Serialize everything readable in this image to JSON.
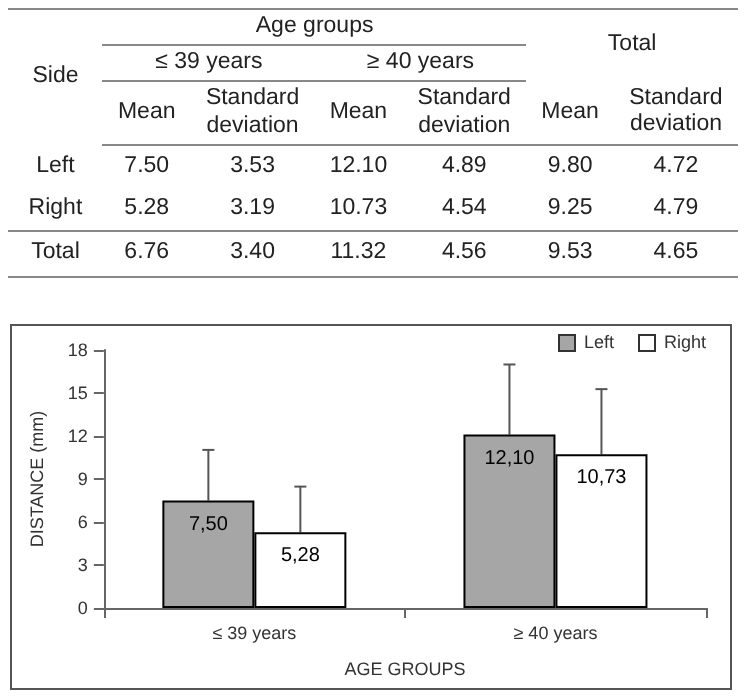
{
  "chart_data": [
    {
      "type": "other",
      "annotations": [
        "Side",
        "Age groups",
        "Total",
        "≤ 39 years",
        "≥ 40 years",
        "Mean",
        "Standard deviation",
        "Mean",
        "Standard deviation",
        "Mean",
        "Standard deviation",
        "Left",
        "7.50",
        "3.53",
        "12.10",
        "4.89",
        "9.80",
        "4.72",
        "Right",
        "5.28",
        "3.19",
        "10.73",
        "4.54",
        "9.25",
        "4.79",
        "Total",
        "6.76",
        "3.40",
        "11.32",
        "4.56",
        "9.53",
        "4.65"
      ]
    },
    {
      "type": "bar",
      "categories": [
        "≤ 39 years",
        "≥ 40 years"
      ],
      "xlabel": "AGE GROUPS",
      "ylabel": "DISTANCE (mm)",
      "series": [
        {
          "name": "Left",
          "color": "#a6a6a6",
          "values": [
            7.5,
            12.1
          ],
          "errors": [
            [
              7.5,
              11.03
            ],
            [
              12.1,
              16.99
            ]
          ],
          "value_labels": [
            "7,50",
            "12,10"
          ]
        },
        {
          "name": "Right",
          "color": "#ffffff",
          "values": [
            5.28,
            10.73
          ],
          "errors": [
            [
              5.28,
              8.47
            ],
            [
              10.73,
              15.27
            ]
          ],
          "value_labels": [
            "5,28",
            "10,73"
          ]
        }
      ],
      "ylim": [
        0,
        18
      ],
      "yticks": [
        0,
        3,
        6,
        9,
        12,
        15,
        18
      ],
      "grid": false,
      "legend": "top right"
    }
  ]
}
